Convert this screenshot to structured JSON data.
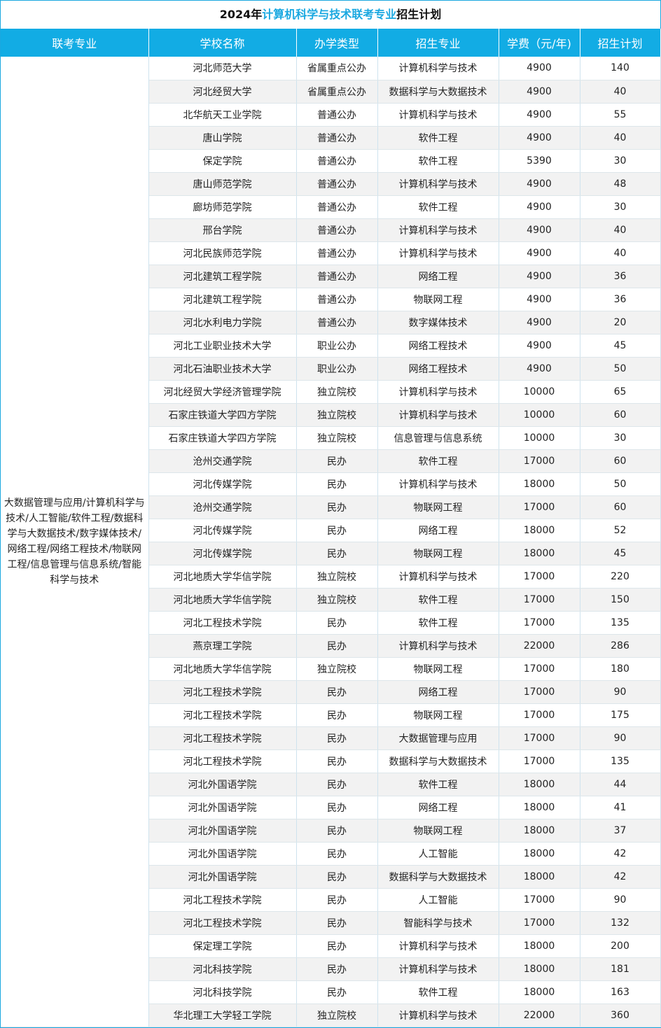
{
  "title": {
    "prefix": "2024年",
    "highlight": "计算机科学与技术联考专业",
    "suffix": "招生计划"
  },
  "colors": {
    "header": "#12ace4",
    "highlight": "#1aa8e0",
    "alt_row": "#f2f2f2"
  },
  "headers": [
    "联考专业",
    "学校名称",
    "办学类型",
    "招生专业",
    "学费（元/年)",
    "招生计划"
  ],
  "major_group": "大数据管理与应用/计算机科学与技术/人工智能/软件工程/数据科学与大数据技术/数字媒体技术/网络工程/网络工程技术/物联网工程/信息管理与信息系统/智能科学与技术",
  "rows": [
    [
      "河北师范大学",
      "省属重点公办",
      "计算机科学与技术",
      "4900",
      "140"
    ],
    [
      "河北经贸大学",
      "省属重点公办",
      "数据科学与大数据技术",
      "4900",
      "40"
    ],
    [
      "北华航天工业学院",
      "普通公办",
      "计算机科学与技术",
      "4900",
      "55"
    ],
    [
      "唐山学院",
      "普通公办",
      "软件工程",
      "4900",
      "40"
    ],
    [
      "保定学院",
      "普通公办",
      "软件工程",
      "5390",
      "30"
    ],
    [
      "唐山师范学院",
      "普通公办",
      "计算机科学与技术",
      "4900",
      "48"
    ],
    [
      "廊坊师范学院",
      "普通公办",
      "软件工程",
      "4900",
      "30"
    ],
    [
      "邢台学院",
      "普通公办",
      "计算机科学与技术",
      "4900",
      "40"
    ],
    [
      "河北民族师范学院",
      "普通公办",
      "计算机科学与技术",
      "4900",
      "40"
    ],
    [
      "河北建筑工程学院",
      "普通公办",
      "网络工程",
      "4900",
      "36"
    ],
    [
      "河北建筑工程学院",
      "普通公办",
      "物联网工程",
      "4900",
      "36"
    ],
    [
      "河北水利电力学院",
      "普通公办",
      "数字媒体技术",
      "4900",
      "20"
    ],
    [
      "河北工业职业技术大学",
      "职业公办",
      "网络工程技术",
      "4900",
      "45"
    ],
    [
      "河北石油职业技术大学",
      "职业公办",
      "网络工程技术",
      "4900",
      "50"
    ],
    [
      "河北经贸大学经济管理学院",
      "独立院校",
      "计算机科学与技术",
      "10000",
      "65"
    ],
    [
      "石家庄铁道大学四方学院",
      "独立院校",
      "计算机科学与技术",
      "10000",
      "60"
    ],
    [
      "石家庄铁道大学四方学院",
      "独立院校",
      "信息管理与信息系统",
      "10000",
      "30"
    ],
    [
      "沧州交通学院",
      "民办",
      "软件工程",
      "17000",
      "60"
    ],
    [
      "河北传媒学院",
      "民办",
      "计算机科学与技术",
      "18000",
      "50"
    ],
    [
      "沧州交通学院",
      "民办",
      "物联网工程",
      "17000",
      "60"
    ],
    [
      "河北传媒学院",
      "民办",
      "网络工程",
      "18000",
      "52"
    ],
    [
      "河北传媒学院",
      "民办",
      "物联网工程",
      "18000",
      "45"
    ],
    [
      "河北地质大学华信学院",
      "独立院校",
      "计算机科学与技术",
      "17000",
      "220"
    ],
    [
      "河北地质大学华信学院",
      "独立院校",
      "软件工程",
      "17000",
      "150"
    ],
    [
      "河北工程技术学院",
      "民办",
      "软件工程",
      "17000",
      "135"
    ],
    [
      "燕京理工学院",
      "民办",
      "计算机科学与技术",
      "22000",
      "286"
    ],
    [
      "河北地质大学华信学院",
      "独立院校",
      "物联网工程",
      "17000",
      "180"
    ],
    [
      "河北工程技术学院",
      "民办",
      "网络工程",
      "17000",
      "90"
    ],
    [
      "河北工程技术学院",
      "民办",
      "物联网工程",
      "17000",
      "175"
    ],
    [
      "河北工程技术学院",
      "民办",
      "大数据管理与应用",
      "17000",
      "90"
    ],
    [
      "河北工程技术学院",
      "民办",
      "数据科学与大数据技术",
      "17000",
      "135"
    ],
    [
      "河北外国语学院",
      "民办",
      "软件工程",
      "18000",
      "44"
    ],
    [
      "河北外国语学院",
      "民办",
      "网络工程",
      "18000",
      "41"
    ],
    [
      "河北外国语学院",
      "民办",
      "物联网工程",
      "18000",
      "37"
    ],
    [
      "河北外国语学院",
      "民办",
      "人工智能",
      "18000",
      "42"
    ],
    [
      "河北外国语学院",
      "民办",
      "数据科学与大数据技术",
      "18000",
      "42"
    ],
    [
      "河北工程技术学院",
      "民办",
      "人工智能",
      "17000",
      "90"
    ],
    [
      "河北工程技术学院",
      "民办",
      "智能科学与技术",
      "17000",
      "132"
    ],
    [
      "保定理工学院",
      "民办",
      "计算机科学与技术",
      "18000",
      "200"
    ],
    [
      "河北科技学院",
      "民办",
      "计算机科学与技术",
      "18000",
      "181"
    ],
    [
      "河北科技学院",
      "民办",
      "软件工程",
      "18000",
      "163"
    ],
    [
      "华北理工大学轻工学院",
      "独立院校",
      "计算机科学与技术",
      "22000",
      "360"
    ]
  ]
}
